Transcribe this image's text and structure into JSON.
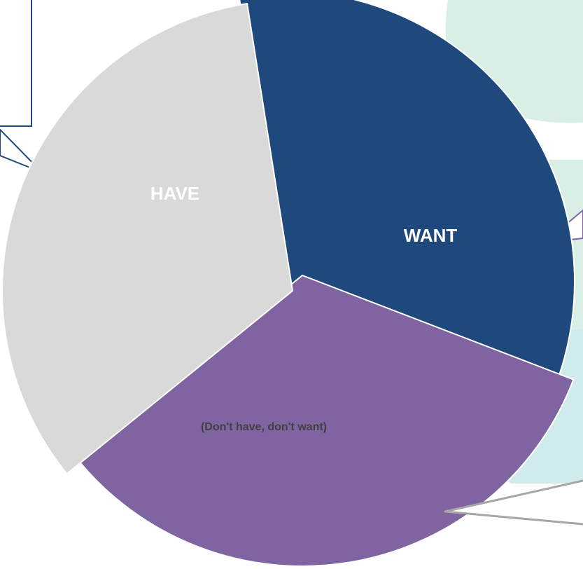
{
  "chart_data": {
    "type": "pie",
    "title": "",
    "slices": [
      {
        "label": "HAVE",
        "value": 33.3,
        "color": "#1F497D",
        "label_color": "#FFFFFF"
      },
      {
        "label": "WANT",
        "value": 33.3,
        "color": "#8064A2",
        "label_color": "#FFFFFF"
      },
      {
        "label": "(Don't have, don't want)",
        "value": 33.3,
        "color": "#D9D9D9",
        "label_color": "#404040"
      }
    ],
    "legend": "none",
    "background_shape_colors": [
      "#D9EFE6",
      "#CFEBEB"
    ],
    "callout_border_color": "#1F497D",
    "leader_line_color": "#A6A6A6"
  }
}
